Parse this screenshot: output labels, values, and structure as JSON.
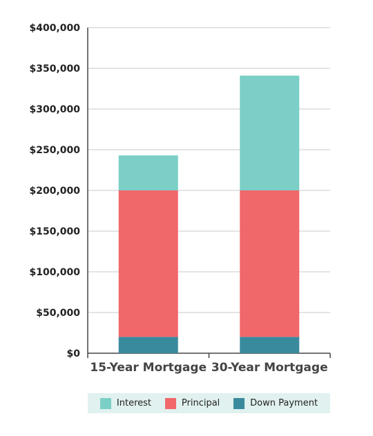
{
  "chart_data": {
    "type": "bar",
    "stacked": true,
    "categories": [
      "15-Year Mortgage",
      "30-Year Mortgage"
    ],
    "series": [
      {
        "name": "Down Payment",
        "color": "#3a8a9e",
        "values": [
          20000,
          20000
        ]
      },
      {
        "name": "Principal",
        "color": "#f0686a",
        "values": [
          180000,
          180000
        ]
      },
      {
        "name": "Interest",
        "color": "#7bcfc7",
        "values": [
          43000,
          141000
        ]
      }
    ],
    "legend_order": [
      "Interest",
      "Principal",
      "Down Payment"
    ],
    "legend_position": "bottom",
    "ylim": [
      0,
      400000
    ],
    "yticks": [
      0,
      50000,
      100000,
      150000,
      200000,
      250000,
      300000,
      350000,
      400000
    ],
    "ytick_labels": [
      "$0",
      "$50,000",
      "$100,000",
      "$150,000",
      "$200,000",
      "$250,000",
      "$300,000",
      "$350,000",
      "$400,000"
    ],
    "grid": true,
    "title": "",
    "xlabel": "",
    "ylabel": ""
  }
}
